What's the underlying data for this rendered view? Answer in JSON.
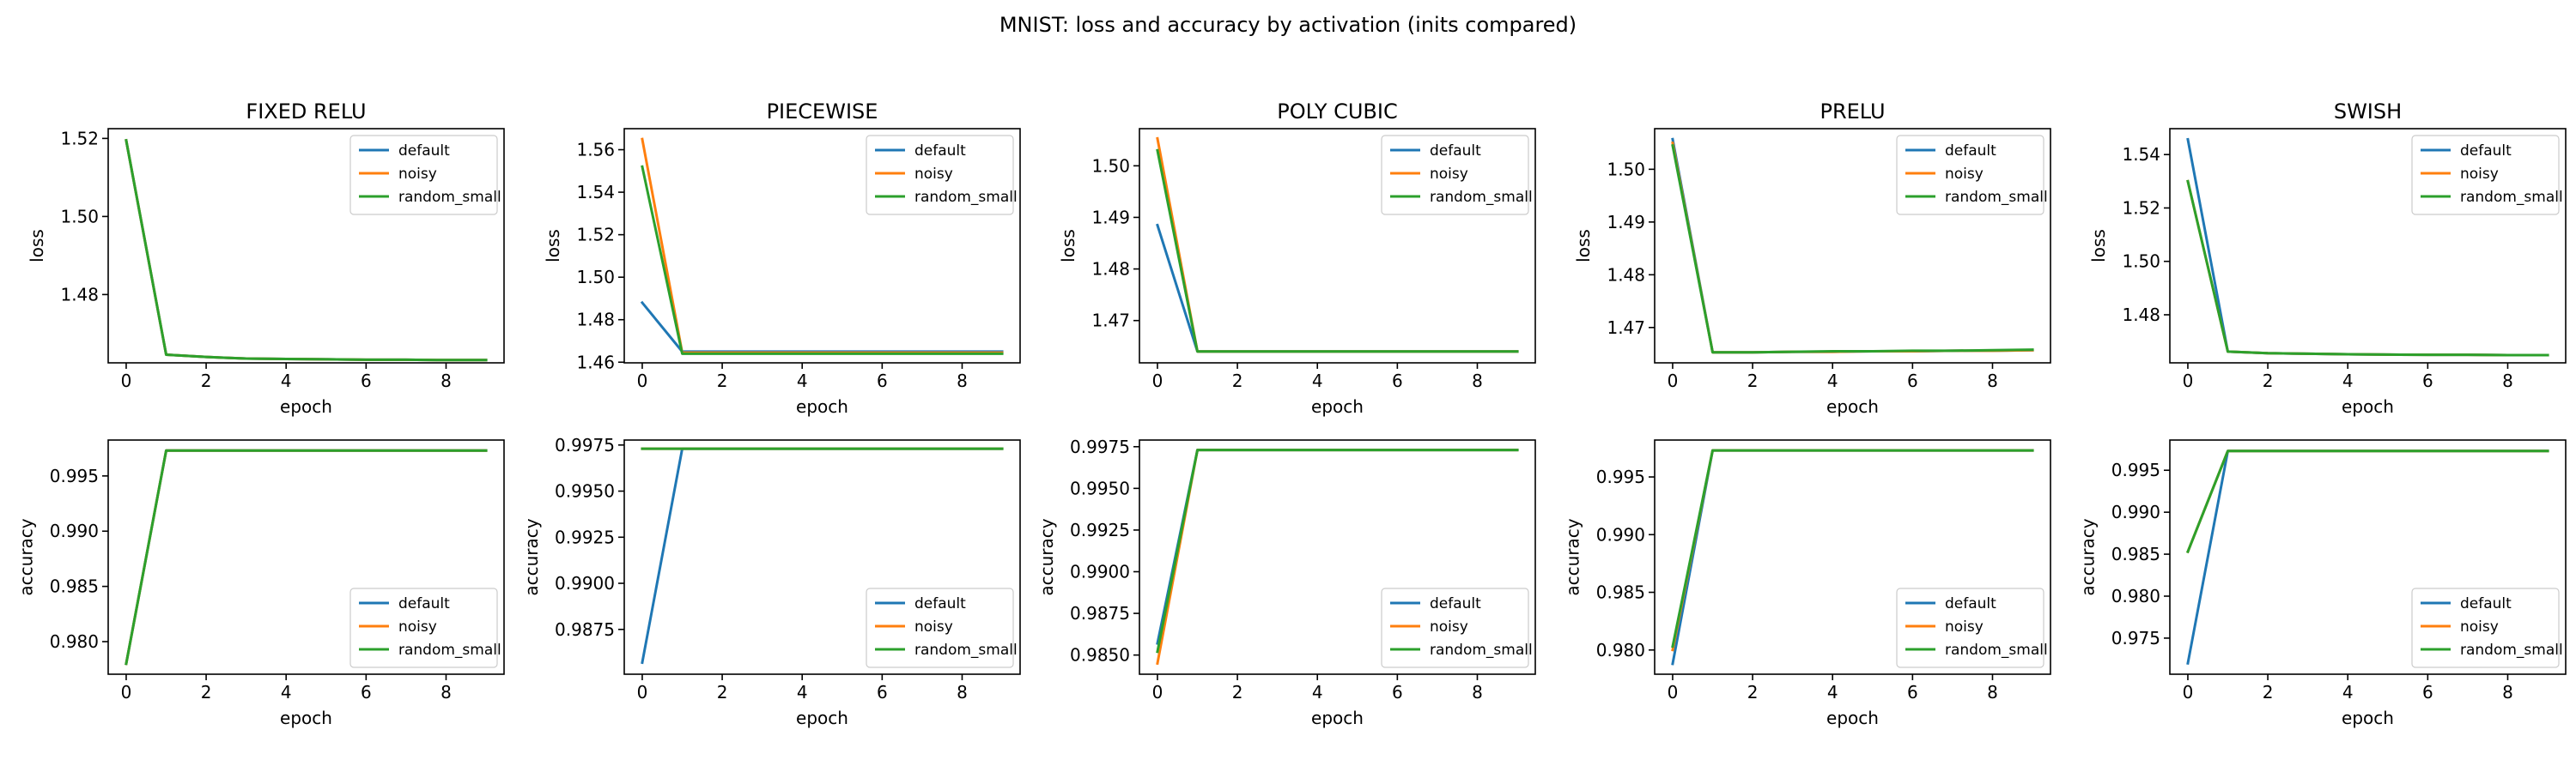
{
  "figure": {
    "title": "MNIST: loss and accuracy by activation (inits compared)"
  },
  "legend_labels": [
    "default",
    "noisy",
    "random_small"
  ],
  "series_colors": {
    "default": "#1f77b4",
    "noisy": "#ff7f0e",
    "random_small": "#2ca02c"
  },
  "chart_data": [
    {
      "type": "line",
      "title": "FIXED RELU",
      "xlabel": "epoch",
      "ylabel": "loss",
      "xlim": [
        -0.45,
        9.45
      ],
      "ylim": [
        1.4625,
        1.5225
      ],
      "xticks": [
        0,
        2,
        4,
        6,
        8
      ],
      "xtick_labels": [
        "0",
        "2",
        "4",
        "6",
        "8"
      ],
      "yticks": [
        1.48,
        1.5,
        1.52
      ],
      "ytick_labels": [
        "1.48",
        "1.50",
        "1.52"
      ],
      "legend": "upper right",
      "x": [
        0,
        1,
        2,
        3,
        4,
        5,
        6,
        7,
        8,
        9
      ],
      "series": [
        {
          "name": "default",
          "values": [
            1.5195,
            1.4646,
            1.464,
            1.4636,
            1.4635,
            1.4634,
            1.4633,
            1.4633,
            1.4632,
            1.4632
          ]
        },
        {
          "name": "noisy",
          "values": [
            1.5195,
            1.4646,
            1.464,
            1.4636,
            1.4635,
            1.4634,
            1.4633,
            1.4633,
            1.4632,
            1.4632
          ]
        },
        {
          "name": "random_small",
          "values": [
            1.5195,
            1.4646,
            1.464,
            1.4636,
            1.4635,
            1.4634,
            1.4633,
            1.4633,
            1.4632,
            1.4632
          ]
        }
      ]
    },
    {
      "type": "line",
      "title": "PIECEWISE",
      "xlabel": "epoch",
      "ylabel": "loss",
      "xlim": [
        -0.45,
        9.45
      ],
      "ylim": [
        1.4597,
        1.5699
      ],
      "xticks": [
        0,
        2,
        4,
        6,
        8
      ],
      "xtick_labels": [
        "0",
        "2",
        "4",
        "6",
        "8"
      ],
      "yticks": [
        1.46,
        1.48,
        1.5,
        1.52,
        1.54,
        1.56
      ],
      "ytick_labels": [
        "1.46",
        "1.48",
        "1.50",
        "1.52",
        "1.54",
        "1.56"
      ],
      "legend": "upper right",
      "x": [
        0,
        1,
        2,
        3,
        4,
        5,
        6,
        7,
        8,
        9
      ],
      "series": [
        {
          "name": "default",
          "values": [
            1.488,
            1.465,
            1.465,
            1.465,
            1.465,
            1.465,
            1.465,
            1.465,
            1.465,
            1.465
          ]
        },
        {
          "name": "noisy",
          "values": [
            1.565,
            1.4645,
            1.4645,
            1.4645,
            1.4645,
            1.4645,
            1.4645,
            1.4645,
            1.4645,
            1.4645
          ]
        },
        {
          "name": "random_small",
          "values": [
            1.552,
            1.464,
            1.464,
            1.464,
            1.464,
            1.464,
            1.464,
            1.464,
            1.464,
            1.464
          ]
        }
      ]
    },
    {
      "type": "line",
      "title": "POLY CUBIC",
      "xlabel": "epoch",
      "ylabel": "loss",
      "xlim": [
        -0.45,
        9.45
      ],
      "ylim": [
        1.4618,
        1.5072
      ],
      "xticks": [
        0,
        2,
        4,
        6,
        8
      ],
      "xtick_labels": [
        "0",
        "2",
        "4",
        "6",
        "8"
      ],
      "yticks": [
        1.47,
        1.48,
        1.49,
        1.5
      ],
      "ytick_labels": [
        "1.47",
        "1.48",
        "1.49",
        "1.50"
      ],
      "legend": "upper right",
      "x": [
        0,
        1,
        2,
        3,
        4,
        5,
        6,
        7,
        8,
        9
      ],
      "series": [
        {
          "name": "default",
          "values": [
            1.4885,
            1.464,
            1.464,
            1.464,
            1.464,
            1.464,
            1.464,
            1.464,
            1.464,
            1.464
          ]
        },
        {
          "name": "noisy",
          "values": [
            1.5053,
            1.464,
            1.464,
            1.464,
            1.464,
            1.464,
            1.464,
            1.464,
            1.464,
            1.464
          ]
        },
        {
          "name": "random_small",
          "values": [
            1.503,
            1.464,
            1.464,
            1.464,
            1.464,
            1.464,
            1.464,
            1.464,
            1.464,
            1.464
          ]
        }
      ]
    },
    {
      "type": "line",
      "title": "PRELU",
      "xlabel": "epoch",
      "ylabel": "loss",
      "xlim": [
        -0.45,
        9.45
      ],
      "ylim": [
        1.4633,
        1.5077
      ],
      "xticks": [
        0,
        2,
        4,
        6,
        8
      ],
      "xtick_labels": [
        "0",
        "2",
        "4",
        "6",
        "8"
      ],
      "yticks": [
        1.47,
        1.48,
        1.49,
        1.5
      ],
      "ytick_labels": [
        "1.47",
        "1.48",
        "1.49",
        "1.50"
      ],
      "legend": "upper right",
      "x": [
        0,
        1,
        2,
        3,
        4,
        5,
        6,
        7,
        8,
        9
      ],
      "series": [
        {
          "name": "default",
          "values": [
            1.5057,
            1.4653,
            1.4653,
            1.4654,
            1.4654,
            1.4655,
            1.4655,
            1.4656,
            1.4656,
            1.4657
          ]
        },
        {
          "name": "noisy",
          "values": [
            1.505,
            1.4653,
            1.4653,
            1.4654,
            1.4654,
            1.4655,
            1.4655,
            1.4656,
            1.4656,
            1.4657
          ]
        },
        {
          "name": "random_small",
          "values": [
            1.5045,
            1.4653,
            1.4653,
            1.4654,
            1.4655,
            1.4655,
            1.4656,
            1.4656,
            1.4657,
            1.4658
          ]
        }
      ]
    },
    {
      "type": "line",
      "title": "SWISH",
      "xlabel": "epoch",
      "ylabel": "loss",
      "xlim": [
        -0.45,
        9.45
      ],
      "ylim": [
        1.462,
        1.5497
      ],
      "xticks": [
        0,
        2,
        4,
        6,
        8
      ],
      "xtick_labels": [
        "0",
        "2",
        "4",
        "6",
        "8"
      ],
      "yticks": [
        1.48,
        1.5,
        1.52,
        1.54
      ],
      "ytick_labels": [
        "1.48",
        "1.50",
        "1.52",
        "1.54"
      ],
      "legend": "upper right",
      "x": [
        0,
        1,
        2,
        3,
        4,
        5,
        6,
        7,
        8,
        9
      ],
      "series": [
        {
          "name": "default",
          "values": [
            1.5457,
            1.4662,
            1.4656,
            1.4654,
            1.4652,
            1.4651,
            1.465,
            1.465,
            1.4649,
            1.4649
          ]
        },
        {
          "name": "noisy",
          "values": [
            1.53,
            1.4662,
            1.4656,
            1.4654,
            1.4652,
            1.4651,
            1.465,
            1.465,
            1.4649,
            1.4649
          ]
        },
        {
          "name": "random_small",
          "values": [
            1.53,
            1.4662,
            1.4656,
            1.4654,
            1.4652,
            1.4651,
            1.465,
            1.465,
            1.4649,
            1.4649
          ]
        }
      ]
    },
    {
      "type": "line",
      "title": "",
      "xlabel": "epoch",
      "ylabel": "accuracy",
      "xlim": [
        -0.45,
        9.45
      ],
      "ylim": [
        0.97705,
        0.99825
      ],
      "xticks": [
        0,
        2,
        4,
        6,
        8
      ],
      "xtick_labels": [
        "0",
        "2",
        "4",
        "6",
        "8"
      ],
      "yticks": [
        0.98,
        0.985,
        0.99,
        0.995
      ],
      "ytick_labels": [
        "0.980",
        "0.985",
        "0.990",
        "0.995"
      ],
      "legend": "lower right",
      "x": [
        0,
        1,
        2,
        3,
        4,
        5,
        6,
        7,
        8,
        9
      ],
      "series": [
        {
          "name": "default",
          "values": [
            0.978,
            0.9973,
            0.9973,
            0.9973,
            0.9973,
            0.9973,
            0.9973,
            0.9973,
            0.9973,
            0.9973
          ]
        },
        {
          "name": "noisy",
          "values": [
            0.978,
            0.9973,
            0.9973,
            0.9973,
            0.9973,
            0.9973,
            0.9973,
            0.9973,
            0.9973,
            0.9973
          ]
        },
        {
          "name": "random_small",
          "values": [
            0.978,
            0.9973,
            0.9973,
            0.9973,
            0.9973,
            0.9973,
            0.9973,
            0.9973,
            0.9973,
            0.9973
          ]
        }
      ]
    },
    {
      "type": "line",
      "title": "",
      "xlabel": "epoch",
      "ylabel": "accuracy",
      "xlim": [
        -0.45,
        9.45
      ],
      "ylim": [
        0.98507,
        0.99777
      ],
      "xticks": [
        0,
        2,
        4,
        6,
        8
      ],
      "xtick_labels": [
        "0",
        "2",
        "4",
        "6",
        "8"
      ],
      "yticks": [
        0.9875,
        0.99,
        0.9925,
        0.995,
        0.9975
      ],
      "ytick_labels": [
        "0.9875",
        "0.9900",
        "0.9925",
        "0.9950",
        "0.9975"
      ],
      "legend": "lower right",
      "x": [
        0,
        1,
        2,
        3,
        4,
        5,
        6,
        7,
        8,
        9
      ],
      "series": [
        {
          "name": "default",
          "values": [
            0.9857,
            0.9973,
            0.9973,
            0.9973,
            0.9973,
            0.9973,
            0.9973,
            0.9973,
            0.9973,
            0.9973
          ]
        },
        {
          "name": "noisy",
          "values": [
            0.9973,
            0.9973,
            0.9973,
            0.9973,
            0.9973,
            0.9973,
            0.9973,
            0.9973,
            0.9973,
            0.9973
          ]
        },
        {
          "name": "random_small",
          "values": [
            0.9973,
            0.9973,
            0.9973,
            0.9973,
            0.9973,
            0.9973,
            0.9973,
            0.9973,
            0.9973,
            0.9973
          ]
        }
      ]
    },
    {
      "type": "line",
      "title": "",
      "xlabel": "epoch",
      "ylabel": "accuracy",
      "xlim": [
        -0.45,
        9.45
      ],
      "ylim": [
        0.98385,
        0.9979
      ],
      "xticks": [
        0,
        2,
        4,
        6,
        8
      ],
      "xtick_labels": [
        "0",
        "2",
        "4",
        "6",
        "8"
      ],
      "yticks": [
        0.985,
        0.9875,
        0.99,
        0.9925,
        0.995,
        0.9975
      ],
      "ytick_labels": [
        "0.9850",
        "0.9875",
        "0.9900",
        "0.9925",
        "0.9950",
        "0.9975"
      ],
      "legend": "lower right",
      "x": [
        0,
        1,
        2,
        3,
        4,
        5,
        6,
        7,
        8,
        9
      ],
      "series": [
        {
          "name": "default",
          "values": [
            0.9857,
            0.9973,
            0.9973,
            0.9973,
            0.9973,
            0.9973,
            0.9973,
            0.9973,
            0.9973,
            0.9973
          ]
        },
        {
          "name": "noisy",
          "values": [
            0.9845,
            0.9973,
            0.9973,
            0.9973,
            0.9973,
            0.9973,
            0.9973,
            0.9973,
            0.9973,
            0.9973
          ]
        },
        {
          "name": "random_small",
          "values": [
            0.9852,
            0.9973,
            0.9973,
            0.9973,
            0.9973,
            0.9973,
            0.9973,
            0.9973,
            0.9973,
            0.9973
          ]
        }
      ]
    },
    {
      "type": "line",
      "title": "",
      "xlabel": "epoch",
      "ylabel": "accuracy",
      "xlim": [
        -0.45,
        9.45
      ],
      "ylim": [
        0.9779,
        0.9982
      ],
      "xticks": [
        0,
        2,
        4,
        6,
        8
      ],
      "xtick_labels": [
        "0",
        "2",
        "4",
        "6",
        "8"
      ],
      "yticks": [
        0.98,
        0.985,
        0.99,
        0.995
      ],
      "ytick_labels": [
        "0.980",
        "0.985",
        "0.990",
        "0.995"
      ],
      "legend": "lower right",
      "x": [
        0,
        1,
        2,
        3,
        4,
        5,
        6,
        7,
        8,
        9
      ],
      "series": [
        {
          "name": "default",
          "values": [
            0.9788,
            0.9973,
            0.9973,
            0.9973,
            0.9973,
            0.9973,
            0.9973,
            0.9973,
            0.9973,
            0.9973
          ]
        },
        {
          "name": "noisy",
          "values": [
            0.98,
            0.9973,
            0.9973,
            0.9973,
            0.9973,
            0.9973,
            0.9973,
            0.9973,
            0.9973,
            0.9973
          ]
        },
        {
          "name": "random_small",
          "values": [
            0.9803,
            0.9973,
            0.9973,
            0.9973,
            0.9973,
            0.9973,
            0.9973,
            0.9973,
            0.9973,
            0.9973
          ]
        }
      ]
    },
    {
      "type": "line",
      "title": "",
      "xlabel": "epoch",
      "ylabel": "accuracy",
      "xlim": [
        -0.45,
        9.45
      ],
      "ylim": [
        0.9707,
        0.9986
      ],
      "xticks": [
        0,
        2,
        4,
        6,
        8
      ],
      "xtick_labels": [
        "0",
        "2",
        "4",
        "6",
        "8"
      ],
      "yticks": [
        0.975,
        0.98,
        0.985,
        0.99,
        0.995
      ],
      "ytick_labels": [
        "0.975",
        "0.980",
        "0.985",
        "0.990",
        "0.995"
      ],
      "legend": "lower right",
      "x": [
        0,
        1,
        2,
        3,
        4,
        5,
        6,
        7,
        8,
        9
      ],
      "series": [
        {
          "name": "default",
          "values": [
            0.972,
            0.9973,
            0.9973,
            0.9973,
            0.9973,
            0.9973,
            0.9973,
            0.9973,
            0.9973,
            0.9973
          ]
        },
        {
          "name": "noisy",
          "values": [
            0.9853,
            0.9973,
            0.9973,
            0.9973,
            0.9973,
            0.9973,
            0.9973,
            0.9973,
            0.9973,
            0.9973
          ]
        },
        {
          "name": "random_small",
          "values": [
            0.9853,
            0.9973,
            0.9973,
            0.9973,
            0.9973,
            0.9973,
            0.9973,
            0.9973,
            0.9973,
            0.9973
          ]
        }
      ]
    }
  ]
}
